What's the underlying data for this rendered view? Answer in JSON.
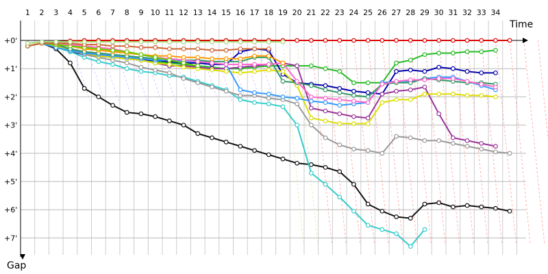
{
  "chart_data": {
    "type": "line",
    "xlabel": "Time",
    "ylabel": "Gap",
    "x_ticks": [
      "1",
      "2",
      "3",
      "4",
      "5",
      "6",
      "7",
      "8",
      "9",
      "10",
      "11",
      "12",
      "13",
      "14",
      "15",
      "16",
      "17",
      "18",
      "19",
      "20",
      "21",
      "22",
      "23",
      "24",
      "25",
      "26",
      "27",
      "28",
      "29",
      "30",
      "31",
      "32",
      "33",
      "34"
    ],
    "y_ticks": [
      "+0'",
      "+1'",
      "+2'",
      "+3'",
      "+4'",
      "+5'",
      "+6'",
      "+7'"
    ],
    "xlim": [
      0,
      35.5
    ],
    "ylim": [
      -0.6,
      7.25
    ],
    "grid": true,
    "legend": "none",
    "series": [
      {
        "color": "#dd0000",
        "values": [
          0.2,
          0.1,
          0.05,
          0.02,
          0,
          0,
          0,
          0,
          0,
          0,
          0,
          0,
          0,
          0,
          0,
          0,
          0,
          0,
          0,
          0,
          0,
          0,
          0,
          0,
          0,
          0,
          0,
          0,
          0,
          0,
          0,
          0,
          0,
          0,
          0
        ]
      },
      {
        "color": "#22bb22",
        "values": [
          0.2,
          0.1,
          0.15,
          0.3,
          0.45,
          0.55,
          0.6,
          0.65,
          0.7,
          0.75,
          0.8,
          0.85,
          0.9,
          0.95,
          1.0,
          1.0,
          0.95,
          0.9,
          0.9,
          0.9,
          0.9,
          1.0,
          1.1,
          1.5,
          1.5,
          1.5,
          0.8,
          0.7,
          0.5,
          0.45,
          0.45,
          0.4,
          0.4,
          0.35,
          null
        ]
      },
      {
        "color": "#0000aa",
        "values": [
          0.2,
          0.1,
          0.2,
          0.4,
          0.5,
          0.55,
          0.6,
          0.65,
          0.7,
          0.7,
          0.75,
          0.8,
          0.8,
          0.85,
          0.85,
          0.4,
          0.3,
          0.35,
          1.2,
          1.5,
          1.55,
          1.6,
          1.7,
          1.8,
          1.85,
          1.9,
          1.1,
          1.05,
          1.1,
          0.95,
          1.0,
          1.1,
          1.15,
          1.15,
          null
        ]
      },
      {
        "color": "#111111",
        "values": [
          0.2,
          0.1,
          0.3,
          0.8,
          1.7,
          2.0,
          2.3,
          2.55,
          2.6,
          2.7,
          2.85,
          3.0,
          3.3,
          3.45,
          3.6,
          3.75,
          3.9,
          4.05,
          4.2,
          4.35,
          4.4,
          4.5,
          4.65,
          5.1,
          5.8,
          6.05,
          6.25,
          6.3,
          5.8,
          5.75,
          5.9,
          5.85,
          5.9,
          5.95,
          6.05
        ]
      },
      {
        "color": "#33cccc",
        "values": [
          0.2,
          0.1,
          0.25,
          0.4,
          0.6,
          0.75,
          0.85,
          1.0,
          1.1,
          1.15,
          1.25,
          1.3,
          1.45,
          1.6,
          1.75,
          2.1,
          2.2,
          2.25,
          2.35,
          3.0,
          4.7,
          5.1,
          5.55,
          6.05,
          6.55,
          6.7,
          6.85,
          7.3,
          6.7,
          null,
          null,
          null,
          null,
          null,
          null
        ]
      },
      {
        "color": "#999999",
        "values": [
          0.2,
          0.1,
          0.2,
          0.35,
          0.5,
          0.6,
          0.7,
          0.8,
          0.95,
          1.05,
          1.15,
          1.35,
          1.5,
          1.65,
          1.8,
          1.95,
          1.95,
          2.05,
          2.1,
          2.25,
          3.0,
          3.45,
          3.7,
          3.85,
          3.9,
          4.0,
          3.4,
          3.45,
          3.55,
          3.55,
          3.65,
          3.75,
          3.85,
          3.95,
          4.0
        ]
      },
      {
        "color": "#993399",
        "values": [
          0.2,
          0.1,
          0.2,
          0.3,
          0.4,
          0.5,
          0.55,
          0.6,
          0.7,
          0.8,
          0.9,
          0.9,
          0.95,
          1.0,
          1.0,
          0.95,
          0.9,
          0.85,
          0.8,
          0.9,
          2.4,
          2.5,
          2.6,
          2.7,
          2.75,
          1.9,
          1.8,
          1.75,
          1.65,
          2.6,
          3.45,
          3.55,
          3.65,
          3.75,
          null
        ]
      },
      {
        "color": "#dddd00",
        "values": [
          0.2,
          0.1,
          0.2,
          0.35,
          0.45,
          0.55,
          0.6,
          0.65,
          0.7,
          0.8,
          0.85,
          0.95,
          1.0,
          1.05,
          1.1,
          1.15,
          1.1,
          1.05,
          1.1,
          1.6,
          2.75,
          2.85,
          2.95,
          2.95,
          2.95,
          2.2,
          2.1,
          2.1,
          1.9,
          1.9,
          1.9,
          1.95,
          1.95,
          2.0,
          null
        ]
      },
      {
        "color": "#3399ff",
        "values": [
          0.2,
          0.1,
          0.25,
          0.35,
          0.45,
          0.5,
          0.55,
          0.6,
          0.65,
          0.7,
          0.7,
          0.75,
          0.75,
          0.8,
          0.85,
          1.75,
          1.85,
          1.9,
          2.0,
          2.05,
          2.15,
          2.2,
          2.3,
          2.25,
          2.2,
          1.5,
          1.45,
          1.45,
          1.35,
          1.3,
          1.3,
          1.45,
          1.6,
          1.75,
          null
        ]
      },
      {
        "color": "#339966",
        "values": [
          0.2,
          0.1,
          0.15,
          0.3,
          0.4,
          0.45,
          0.5,
          0.55,
          0.6,
          0.65,
          0.65,
          0.7,
          0.7,
          0.75,
          0.75,
          0.75,
          0.6,
          0.6,
          1.45,
          1.5,
          1.6,
          1.75,
          1.85,
          1.95,
          2.0,
          1.55,
          1.5,
          1.5,
          1.35,
          1.4,
          1.45,
          1.5,
          1.5,
          1.55,
          null
        ]
      },
      {
        "color": "#ff66cc",
        "values": [
          0.2,
          0.1,
          0.1,
          0.15,
          0.2,
          0.25,
          0.3,
          0.4,
          0.5,
          0.6,
          0.65,
          0.7,
          0.75,
          0.8,
          0.85,
          0.85,
          0.85,
          0.85,
          0.8,
          1.45,
          2.0,
          2.05,
          2.1,
          2.15,
          2.2,
          1.55,
          1.45,
          1.4,
          1.4,
          1.35,
          1.35,
          1.45,
          1.55,
          1.65,
          null
        ]
      },
      {
        "color": "#ff9900",
        "values": [
          0.2,
          0.1,
          0.15,
          0.2,
          0.3,
          0.35,
          0.4,
          0.45,
          0.5,
          0.55,
          0.55,
          0.6,
          0.6,
          0.65,
          0.65,
          0.65,
          0.55,
          0.55,
          0.8,
          null,
          null,
          null,
          null,
          null,
          null,
          null,
          null,
          null,
          null,
          null,
          null,
          null,
          null,
          null,
          null
        ]
      },
      {
        "color": "#66cc00",
        "values": [
          0.2,
          0.1,
          0.15,
          0.2,
          0.25,
          0.3,
          0.35,
          0.4,
          0.5,
          0.6,
          0.7,
          0.8,
          0.9,
          null,
          null,
          null,
          null,
          null,
          null,
          null,
          null,
          null,
          null,
          null,
          null,
          null,
          null,
          null,
          null,
          null,
          null,
          null,
          null,
          null,
          null
        ]
      },
      {
        "color": "#cc6633",
        "values": [
          0.2,
          0.1,
          0.1,
          0.1,
          0.15,
          0.15,
          0.2,
          0.2,
          0.25,
          0.25,
          0.3,
          0.3,
          0.3,
          0.35,
          0.35,
          0.3,
          0.3,
          0.3,
          null,
          null,
          null,
          null,
          null,
          null,
          null,
          null,
          null,
          null,
          null,
          null,
          null,
          null,
          null,
          null,
          null
        ]
      },
      {
        "color": "#aa66ff",
        "values": [
          0.1,
          0.05,
          0.05,
          0.05,
          0.05,
          0.05,
          0.05,
          0.05,
          0.05,
          0.05,
          0.05,
          0.05,
          0.05,
          0.05,
          0.05,
          0.05,
          0.05,
          0.05,
          0.05,
          null,
          null,
          null,
          null,
          null,
          null,
          null,
          null,
          null,
          null,
          null,
          null,
          null,
          null,
          null,
          null
        ]
      },
      {
        "color": "#aadd77",
        "values": [
          0.1,
          0.05,
          0.05,
          0.05,
          0.05,
          0.05,
          0.05,
          0.05,
          0.05,
          0.05,
          0.05,
          0.05,
          0.05,
          0.05,
          0.05,
          0.05,
          0.05,
          0.05,
          0.05,
          null,
          null,
          null,
          null,
          null,
          null,
          null,
          null,
          null,
          null,
          null,
          null,
          null,
          null,
          null,
          null
        ]
      }
    ]
  }
}
